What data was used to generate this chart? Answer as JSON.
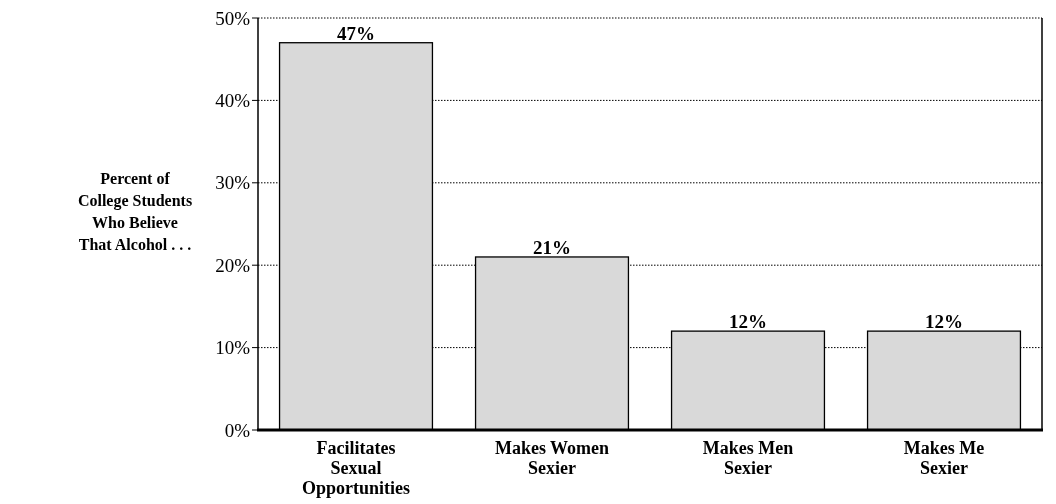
{
  "chart_data": {
    "type": "bar",
    "ylabel": "Percent of College Students Who Believe That Alcohol . . .",
    "categories": [
      "Facilitates Sexual Opportunities",
      "Makes Women Sexier",
      "Makes Men Sexier",
      "Makes Me Sexier"
    ],
    "values": [
      47,
      21,
      12,
      12
    ],
    "color": "#d9d9d9",
    "value_labels": [
      "47%",
      "21%",
      "12%",
      "12%"
    ],
    "ylim": [
      0,
      50
    ],
    "yticks": [
      {
        "value": 0,
        "label": "0%"
      },
      {
        "value": 10,
        "label": "10%"
      },
      {
        "value": 20,
        "label": "20%"
      },
      {
        "value": 30,
        "label": "30%"
      },
      {
        "value": 40,
        "label": "40%"
      },
      {
        "value": 50,
        "label": "50%"
      }
    ],
    "grid": "y"
  }
}
